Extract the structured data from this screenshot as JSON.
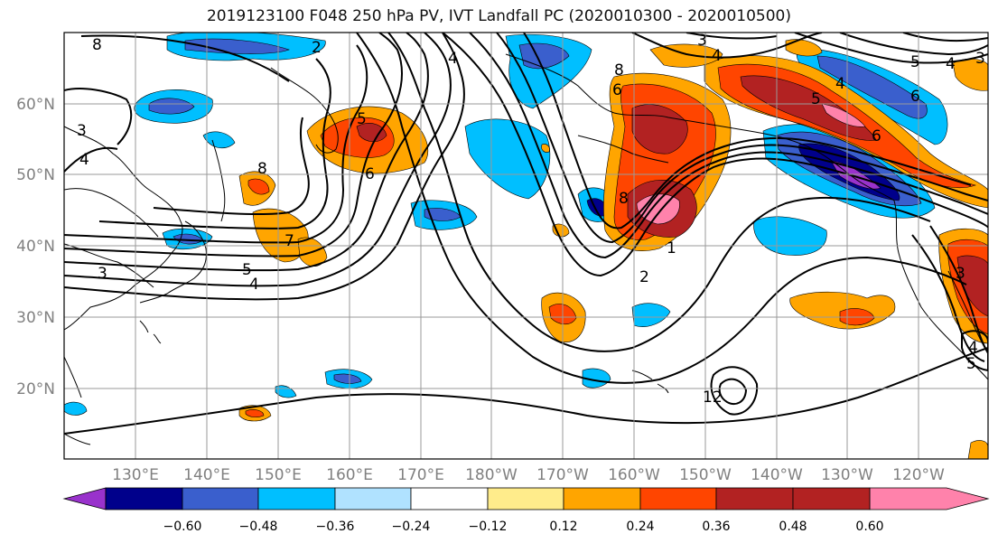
{
  "title": "2019123100 F048 250 hPa PV, IVT Landfall PC (2020010300 - 2020010500)",
  "lat_labels": [
    "60°N",
    "50°N",
    "40°N",
    "30°N",
    "20°N"
  ],
  "lon_labels": [
    "130°E",
    "140°E",
    "150°E",
    "160°E",
    "170°E",
    "180°W",
    "170°W",
    "160°W",
    "150°W",
    "140°W",
    "130°W",
    "120°W"
  ],
  "contour_labels": [
    "8",
    "2",
    "3",
    "4",
    "5",
    "6",
    "7",
    "8",
    "8",
    "6",
    "3",
    "4",
    "5",
    "4",
    "3",
    "4",
    "6",
    "5",
    "4",
    "6",
    "3",
    "4",
    "5",
    "8",
    "2",
    "1",
    "12",
    "5",
    "4",
    "3"
  ],
  "colorbar": {
    "ticks": [
      "−0.60",
      "−0.48",
      "−0.36",
      "−0.24",
      "−0.12",
      "0.12",
      "0.24",
      "0.36",
      "0.48",
      "0.60"
    ],
    "colors": [
      "#9932cc",
      "#00008b",
      "#3a5fcd",
      "#00bfff",
      "#b0e2ff",
      "#ffffff",
      "#ffec8b",
      "#ffa500",
      "#ff4500",
      "#b22222",
      "#ff82ab"
    ]
  }
}
